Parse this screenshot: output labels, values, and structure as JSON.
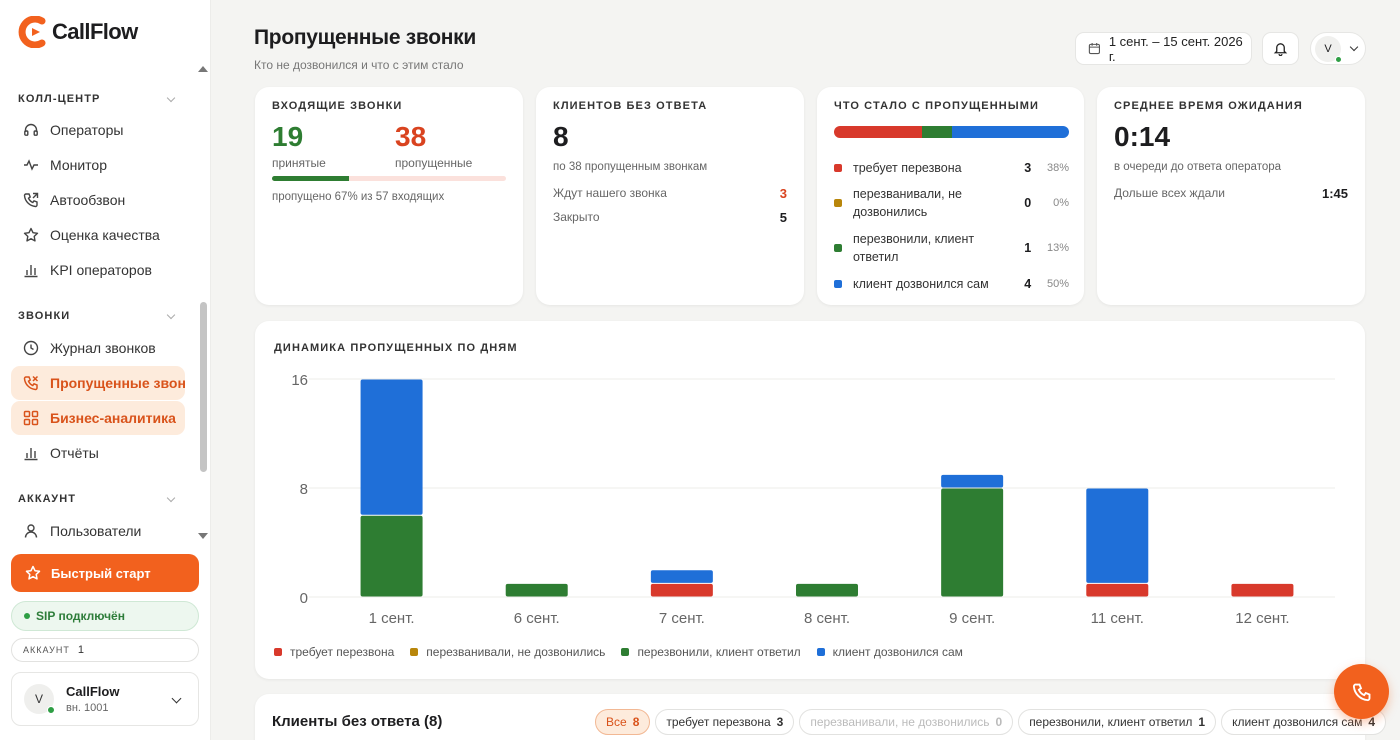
{
  "app": {
    "brand": "CallFlow",
    "accent": "#f2611e"
  },
  "sidebar": {
    "sections": [
      {
        "label": "КОЛЛ-ЦЕНТР"
      },
      {
        "label": "ЗВОНКИ"
      },
      {
        "label": "АККАУНТ"
      }
    ],
    "items": [
      {
        "label": "Операторы",
        "icon": "headset-icon"
      },
      {
        "label": "Монитор",
        "icon": "pulse-icon"
      },
      {
        "label": "Автообзвон",
        "icon": "phone-outgoing-icon"
      },
      {
        "label": "Оценка качества",
        "icon": "star-icon"
      },
      {
        "label": "KPI операторов",
        "icon": "bar-chart-icon"
      },
      {
        "label": "Журнал звонков",
        "icon": "clock-icon"
      },
      {
        "label": "Пропущенные звонки",
        "icon": "phone-missed-icon"
      },
      {
        "label": "Бизнес-аналитика",
        "icon": "grid-icon"
      },
      {
        "label": "Отчёты",
        "icon": "bar-chart-icon"
      },
      {
        "label": "Пользователи",
        "icon": "user-icon"
      }
    ],
    "quick_start": "Быстрый старт",
    "sip_status": "SIP подключён",
    "account_label": "АККАУНТ",
    "account_value": "1",
    "user": {
      "initial": "V",
      "name": "CallFlow",
      "ext": "вн. 1001"
    }
  },
  "header": {
    "title": "Пропущенные звонки",
    "subtitle": "Кто не дозвонился и что с этим стало",
    "date_range": "1 сент. – 15 сент. 2026 г.",
    "profile_initial": "V"
  },
  "cards": {
    "incoming": {
      "title": "ВХОДЯЩИЕ ЗВОНКИ",
      "accepted": "19",
      "accepted_label": "принятые",
      "missed": "38",
      "missed_label": "пропущенные",
      "missed_fraction": 0.67,
      "note": "пропущено 67% из 57 входящих"
    },
    "unanswered": {
      "title": "КЛИЕНТОВ БЕЗ ОТВЕТА",
      "value": "8",
      "note": "по 38 пропущенным звонкам",
      "rows": [
        {
          "label": "Ждут нашего звонка",
          "value": "3"
        },
        {
          "label": "Закрыто",
          "value": "5"
        }
      ]
    },
    "outcome": {
      "title": "ЧТО СТАЛО С ПРОПУЩЕННЫМИ",
      "rows": [
        {
          "label": "требует перезвона",
          "count": "3",
          "pct": "38%",
          "share": 0.375,
          "color": "#d8392b"
        },
        {
          "label": "перезванивали, не дозвонились",
          "count": "0",
          "pct": "0%",
          "share": 0,
          "color": "#b8860b"
        },
        {
          "label": "перезвонили, клиент ответил",
          "count": "1",
          "pct": "13%",
          "share": 0.125,
          "color": "#2e7d32"
        },
        {
          "label": "клиент дозвонился сам",
          "count": "4",
          "pct": "50%",
          "share": 0.5,
          "color": "#1f6fd8"
        }
      ]
    },
    "wait": {
      "title": "СРЕДНЕЕ ВРЕМЯ ОЖИДАНИЯ",
      "value": "0:14",
      "note": "в очереди до ответа оператора",
      "longest_label": "Дольше всех ждали",
      "longest_value": "1:45"
    }
  },
  "chart_data": {
    "type": "bar",
    "stacked": true,
    "title": "ДИНАМИКА ПРОПУЩЕННЫХ ПО ДНЯМ",
    "categories": [
      "1 сент.",
      "6 сент.",
      "7 сент.",
      "8 сент.",
      "9 сент.",
      "11 сент.",
      "12 сент."
    ],
    "ylim": [
      0,
      16
    ],
    "yticks": [
      "0",
      "8",
      "16"
    ],
    "grid": true,
    "series": [
      {
        "name": "требует перезвона",
        "color": "#d8392b",
        "values": [
          0,
          0,
          1,
          0,
          0,
          1,
          1
        ]
      },
      {
        "name": "перезванивали, не дозвонились",
        "color": "#b8860b",
        "values": [
          0,
          0,
          0,
          0,
          0,
          0,
          0
        ]
      },
      {
        "name": "перезвонили, клиент ответил",
        "color": "#2e7d32",
        "values": [
          6,
          1,
          0,
          1,
          8,
          0,
          0
        ]
      },
      {
        "name": "клиент дозвонился сам",
        "color": "#1f6fd8",
        "values": [
          10,
          0,
          1,
          0,
          1,
          7,
          0
        ]
      }
    ]
  },
  "table": {
    "title": "Клиенты без ответа (8)",
    "filters": [
      {
        "label": "Все",
        "count": "8"
      },
      {
        "label": "требует перезвона",
        "count": "3"
      },
      {
        "label": "перезванивали, не дозвонились",
        "count": "0"
      },
      {
        "label": "перезвонили, клиент ответил",
        "count": "1"
      },
      {
        "label": "клиент дозвонился сам",
        "count": "4"
      }
    ]
  }
}
